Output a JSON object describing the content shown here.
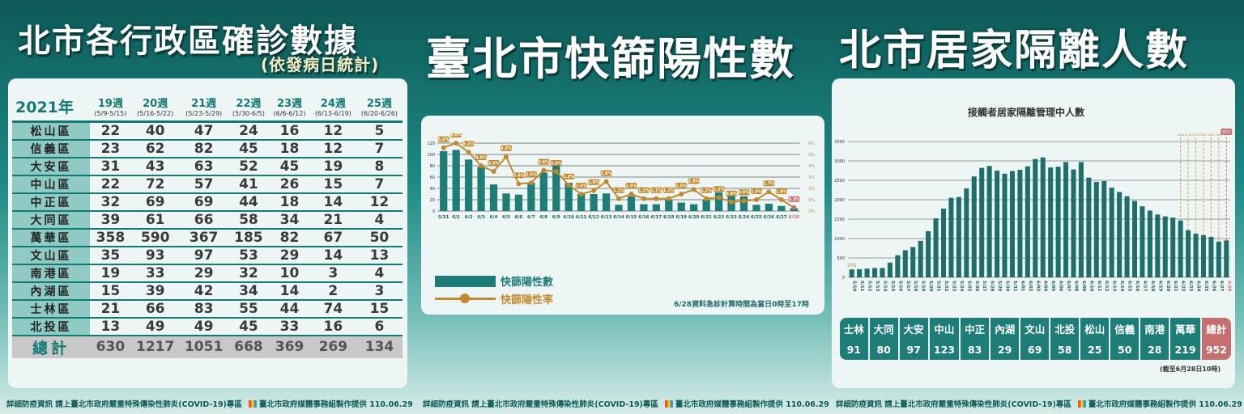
{
  "left": {
    "title": "北市各行政區確診數據",
    "subtitle": "(依發病日統計)",
    "year_label": "2021年",
    "weeks": [
      {
        "w": "19週",
        "r": "(5/9-5/15)"
      },
      {
        "w": "20週",
        "r": "(5/16-5/22)"
      },
      {
        "w": "21週",
        "r": "(5/23-5/29)"
      },
      {
        "w": "22週",
        "r": "(5/30-6/5)"
      },
      {
        "w": "23週",
        "r": "(6/6-6/12)"
      },
      {
        "w": "24週",
        "r": "(6/13-6/19)"
      },
      {
        "w": "25週",
        "r": "(6/20-6/26)"
      }
    ],
    "rows": [
      [
        "松山區",
        22,
        40,
        47,
        24,
        16,
        12,
        5
      ],
      [
        "信義區",
        23,
        62,
        82,
        45,
        18,
        12,
        7
      ],
      [
        "大安區",
        31,
        43,
        63,
        52,
        45,
        19,
        8
      ],
      [
        "中山區",
        22,
        72,
        57,
        41,
        26,
        15,
        7
      ],
      [
        "中正區",
        32,
        69,
        69,
        44,
        18,
        14,
        12
      ],
      [
        "大同區",
        39,
        61,
        66,
        58,
        34,
        21,
        4
      ],
      [
        "萬華區",
        358,
        590,
        367,
        185,
        82,
        67,
        50
      ],
      [
        "文山區",
        35,
        93,
        97,
        53,
        29,
        14,
        13
      ],
      [
        "南港區",
        19,
        33,
        29,
        32,
        10,
        3,
        4
      ],
      [
        "內湖區",
        15,
        39,
        42,
        34,
        14,
        2,
        3
      ],
      [
        "士林區",
        21,
        66,
        83,
        55,
        44,
        74,
        15
      ],
      [
        "北投區",
        13,
        49,
        49,
        45,
        33,
        16,
        6
      ]
    ],
    "total": [
      "總計",
      630,
      1217,
      1051,
      668,
      369,
      269,
      134
    ]
  },
  "middle": {
    "title": "臺北市快篩陽性數",
    "legend_bar": "快篩陽性數",
    "legend_line": "快篩陽性率",
    "note": "6/28資料急診計算時間為當日0時至17時"
  },
  "right": {
    "title": "北市居家隔離人數",
    "chart_title": "接觸者居家隔離管理中人數",
    "districts": [
      "士林",
      "大同",
      "大安",
      "中山",
      "中正",
      "內湖",
      "文山",
      "北投",
      "松山",
      "信義",
      "南港",
      "萬華",
      "總計"
    ],
    "district_values": [
      "91",
      "80",
      "97",
      "123",
      "83",
      "29",
      "69",
      "58",
      "25",
      "50",
      "28",
      "219",
      "952"
    ],
    "note": "(截至6月28日10時)"
  },
  "footer": {
    "text": "詳細防疫資訊 請上臺北市政府嚴重特殊傳染性肺炎(COVID-19)專區",
    "credit": "臺北市政府媒體事務組製作提供 110.06.29"
  },
  "colors": {
    "teal": "#1e7d77",
    "gold": "#c28a2e",
    "red": "#c66f6f"
  },
  "chart_data": [
    {
      "type": "bar+line",
      "x": [
        "5/31",
        "6/1",
        "6/2",
        "6/3",
        "6/4",
        "6/5",
        "6/6",
        "6/7",
        "6/8",
        "6/9",
        "6/10",
        "6/11",
        "6/12",
        "6/13",
        "6/14",
        "6/15",
        "6/16",
        "6/17",
        "6/18",
        "6/19",
        "6/20",
        "6/21",
        "6/22",
        "6/23",
        "6/24",
        "6/25",
        "6/26",
        "6/27",
        "6/28"
      ],
      "series": [
        {
          "name": "快篩陽性數",
          "type": "bar",
          "axis": "left",
          "values": [
            106,
            108,
            91,
            78,
            47,
            31,
            29,
            50,
            68,
            84,
            50,
            30,
            30,
            31,
            11,
            26,
            12,
            12,
            20,
            15,
            12,
            20,
            33,
            33,
            26,
            11,
            13,
            9,
            5
          ]
        },
        {
          "name": "快篩陽性率",
          "type": "line",
          "axis": "right",
          "unit": "%",
          "values": [
            5.6,
            6.0,
            5.2,
            4.0,
            3.5,
            4.8,
            2.4,
            2.5,
            3.6,
            3.5,
            2.3,
            1.5,
            1.8,
            2.6,
            1.1,
            1.5,
            1.1,
            1.1,
            1.1,
            1.5,
            1.9,
            1.1,
            1.2,
            0.8,
            0.9,
            1.0,
            1.7,
            1.0,
            0.3
          ]
        }
      ],
      "yleft": {
        "range": [
          0,
          120
        ],
        "ticks": [
          0,
          20,
          40,
          60,
          80,
          100,
          120
        ]
      },
      "yright": {
        "range": [
          0,
          6
        ],
        "ticks": [
          "0%",
          "1%",
          "2%",
          "3%",
          "4%",
          "5%",
          "6%"
        ]
      },
      "grid": true,
      "highlight_last": true
    },
    {
      "type": "bar",
      "title": "接觸者居家隔離管理中人數",
      "x": [
        "5/10",
        "5/11",
        "5/12",
        "5/13",
        "5/14",
        "5/15",
        "5/16",
        "5/17",
        "5/18",
        "5/19",
        "5/20",
        "5/21",
        "5/22",
        "5/23",
        "5/24",
        "5/25",
        "5/26",
        "5/27",
        "5/28",
        "5/29",
        "5/30",
        "5/31",
        "6/01",
        "6/02",
        "6/03",
        "6/04",
        "6/05",
        "6/06",
        "6/07",
        "6/08",
        "6/09",
        "6/10",
        "6/11",
        "6/12",
        "6/13",
        "6/14",
        "6/15",
        "6/16",
        "6/17",
        "6/18",
        "6/19",
        "6/20",
        "6/21",
        "6/22",
        "6/23",
        "6/24",
        "6/25",
        "6/26",
        "6/27",
        "6/28"
      ],
      "values": [
        205,
        210,
        225,
        240,
        240,
        380,
        570,
        700,
        780,
        940,
        1190,
        1520,
        1770,
        2050,
        2070,
        2290,
        2600,
        2820,
        2870,
        2750,
        2670,
        2740,
        2770,
        2860,
        3050,
        3090,
        2830,
        2850,
        2970,
        2780,
        2970,
        2570,
        2460,
        2480,
        2310,
        2200,
        2090,
        1970,
        1830,
        1720,
        1620,
        1570,
        1540,
        1464,
        1215,
        1124,
        1087,
        1042,
        920,
        952
      ],
      "labels": {
        "5/10": "205",
        "6/22": "1464",
        "6/23": "1215",
        "6/24": "1124",
        "6/25": "1087",
        "6/26": "1042",
        "6/27": "920",
        "6/28": "952"
      },
      "ylim": [
        0,
        3500
      ],
      "yticks": [
        0,
        500,
        1000,
        1500,
        2000,
        2500,
        3000,
        3500
      ],
      "grid": true
    }
  ]
}
